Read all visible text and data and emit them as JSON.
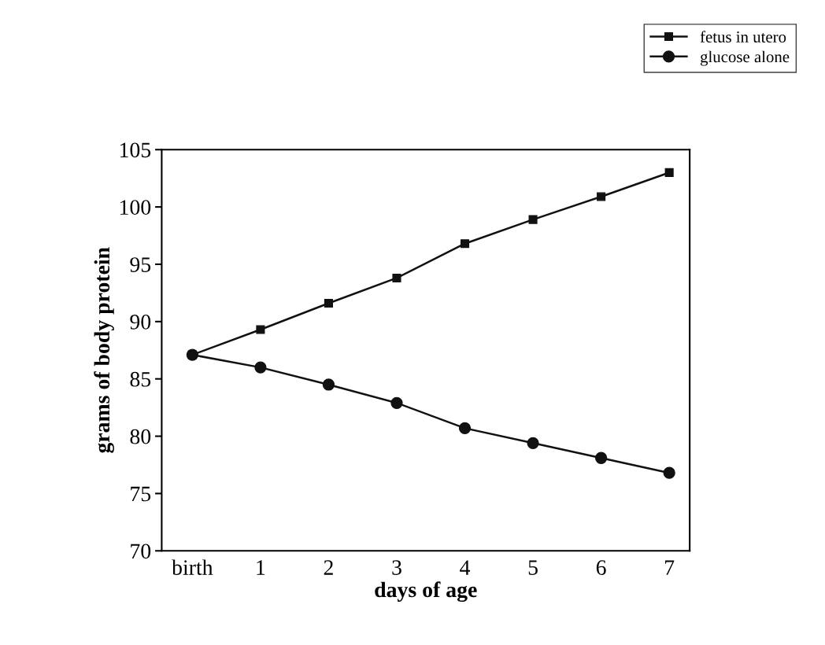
{
  "chart_data": {
    "type": "line",
    "xlabel": "days of age",
    "ylabel": "grams of body protein",
    "categories": [
      "birth",
      "1",
      "2",
      "3",
      "4",
      "5",
      "6",
      "7"
    ],
    "series": [
      {
        "name": "fetus in utero",
        "color": "#111111",
        "marker": "square",
        "values": [
          87.1,
          89.3,
          91.6,
          93.8,
          96.8,
          98.9,
          100.9,
          103
        ]
      },
      {
        "name": "glucose alone",
        "color": "#111111",
        "marker": "circle",
        "values": [
          87.1,
          86.0,
          84.5,
          82.9,
          80.7,
          79.4,
          78.1,
          76.8
        ]
      }
    ],
    "ylim": [
      70,
      105
    ],
    "yticks": [
      70,
      75,
      80,
      85,
      90,
      95,
      100,
      105
    ],
    "grid": false,
    "legend": "top right",
    "line_style": "solid"
  }
}
